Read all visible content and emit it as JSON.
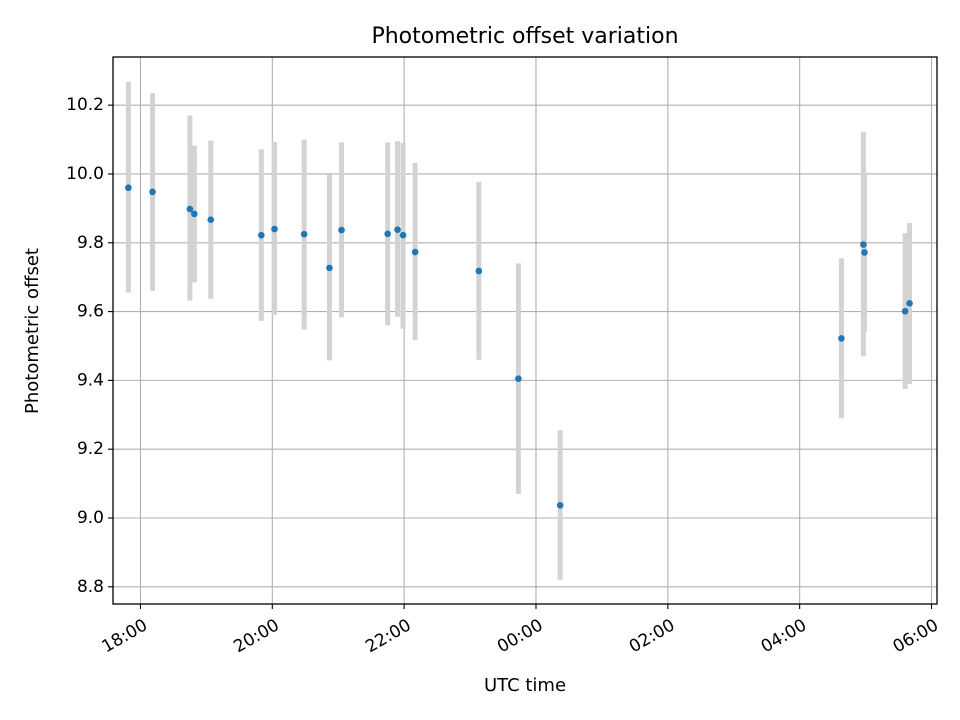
{
  "chart_data": {
    "type": "scatter",
    "title": "Photometric offset variation",
    "xlabel": "UTC time",
    "ylabel": "Photometric offset",
    "x_is_time": true,
    "xlim": [
      "17:35",
      "06:05"
    ],
    "ylim": [
      8.75,
      10.34
    ],
    "x_ticks": [
      {
        "value": "18:00",
        "label": "18:00"
      },
      {
        "value": "20:00",
        "label": "20:00"
      },
      {
        "value": "22:00",
        "label": "22:00"
      },
      {
        "value": "00:00",
        "label": "00:00"
      },
      {
        "value": "02:00",
        "label": "02:00"
      },
      {
        "value": "04:00",
        "label": "04:00"
      },
      {
        "value": "06:00",
        "label": "06:00"
      }
    ],
    "y_ticks": [
      {
        "value": 8.8,
        "label": "8.8"
      },
      {
        "value": 9.0,
        "label": "9.0"
      },
      {
        "value": 9.2,
        "label": "9.2"
      },
      {
        "value": 9.4,
        "label": "9.4"
      },
      {
        "value": 9.6,
        "label": "9.6"
      },
      {
        "value": 9.8,
        "label": "9.8"
      },
      {
        "value": 10.0,
        "label": "10.0"
      },
      {
        "value": 10.2,
        "label": "10.2"
      }
    ],
    "grid": true,
    "colors": {
      "marker": "#1f77b4",
      "errorbar": "#d3d3d3",
      "grid": "#b0b0b0"
    },
    "points": [
      {
        "x": "17:49",
        "y": 9.96,
        "y_low": 9.655,
        "y_high": 10.268
      },
      {
        "x": "18:11",
        "y": 9.948,
        "y_low": 9.66,
        "y_high": 10.235
      },
      {
        "x": "18:45",
        "y": 9.898,
        "y_low": 9.632,
        "y_high": 10.17
      },
      {
        "x": "18:49",
        "y": 9.884,
        "y_low": 9.685,
        "y_high": 10.082
      },
      {
        "x": "19:04",
        "y": 9.867,
        "y_low": 9.637,
        "y_high": 10.097
      },
      {
        "x": "19:50",
        "y": 9.822,
        "y_low": 9.573,
        "y_high": 10.072
      },
      {
        "x": "20:02",
        "y": 9.84,
        "y_low": 9.59,
        "y_high": 10.093
      },
      {
        "x": "20:29",
        "y": 9.825,
        "y_low": 9.548,
        "y_high": 10.1
      },
      {
        "x": "20:52",
        "y": 9.727,
        "y_low": 9.458,
        "y_high": 9.998
      },
      {
        "x": "21:03",
        "y": 9.837,
        "y_low": 9.583,
        "y_high": 10.092
      },
      {
        "x": "21:45",
        "y": 9.826,
        "y_low": 9.56,
        "y_high": 10.092
      },
      {
        "x": "21:54",
        "y": 9.838,
        "y_low": 9.585,
        "y_high": 10.095
      },
      {
        "x": "21:59",
        "y": 9.822,
        "y_low": 9.55,
        "y_high": 10.09
      },
      {
        "x": "22:10",
        "y": 9.773,
        "y_low": 9.517,
        "y_high": 10.032
      },
      {
        "x": "23:08",
        "y": 9.718,
        "y_low": 9.46,
        "y_high": 9.977
      },
      {
        "x": "23:44",
        "y": 9.405,
        "y_low": 9.07,
        "y_high": 9.74
      },
      {
        "x": "00:22",
        "y": 9.037,
        "y_low": 8.82,
        "y_high": 9.255
      },
      {
        "x": "04:38",
        "y": 9.522,
        "y_low": 9.29,
        "y_high": 9.755
      },
      {
        "x": "04:58",
        "y": 9.795,
        "y_low": 9.47,
        "y_high": 10.122
      },
      {
        "x": "04:59",
        "y": 9.772,
        "y_low": 9.54,
        "y_high": 10.0
      },
      {
        "x": "05:36",
        "y": 9.601,
        "y_low": 9.375,
        "y_high": 9.828
      },
      {
        "x": "05:40",
        "y": 9.624,
        "y_low": 9.39,
        "y_high": 9.858
      }
    ]
  }
}
